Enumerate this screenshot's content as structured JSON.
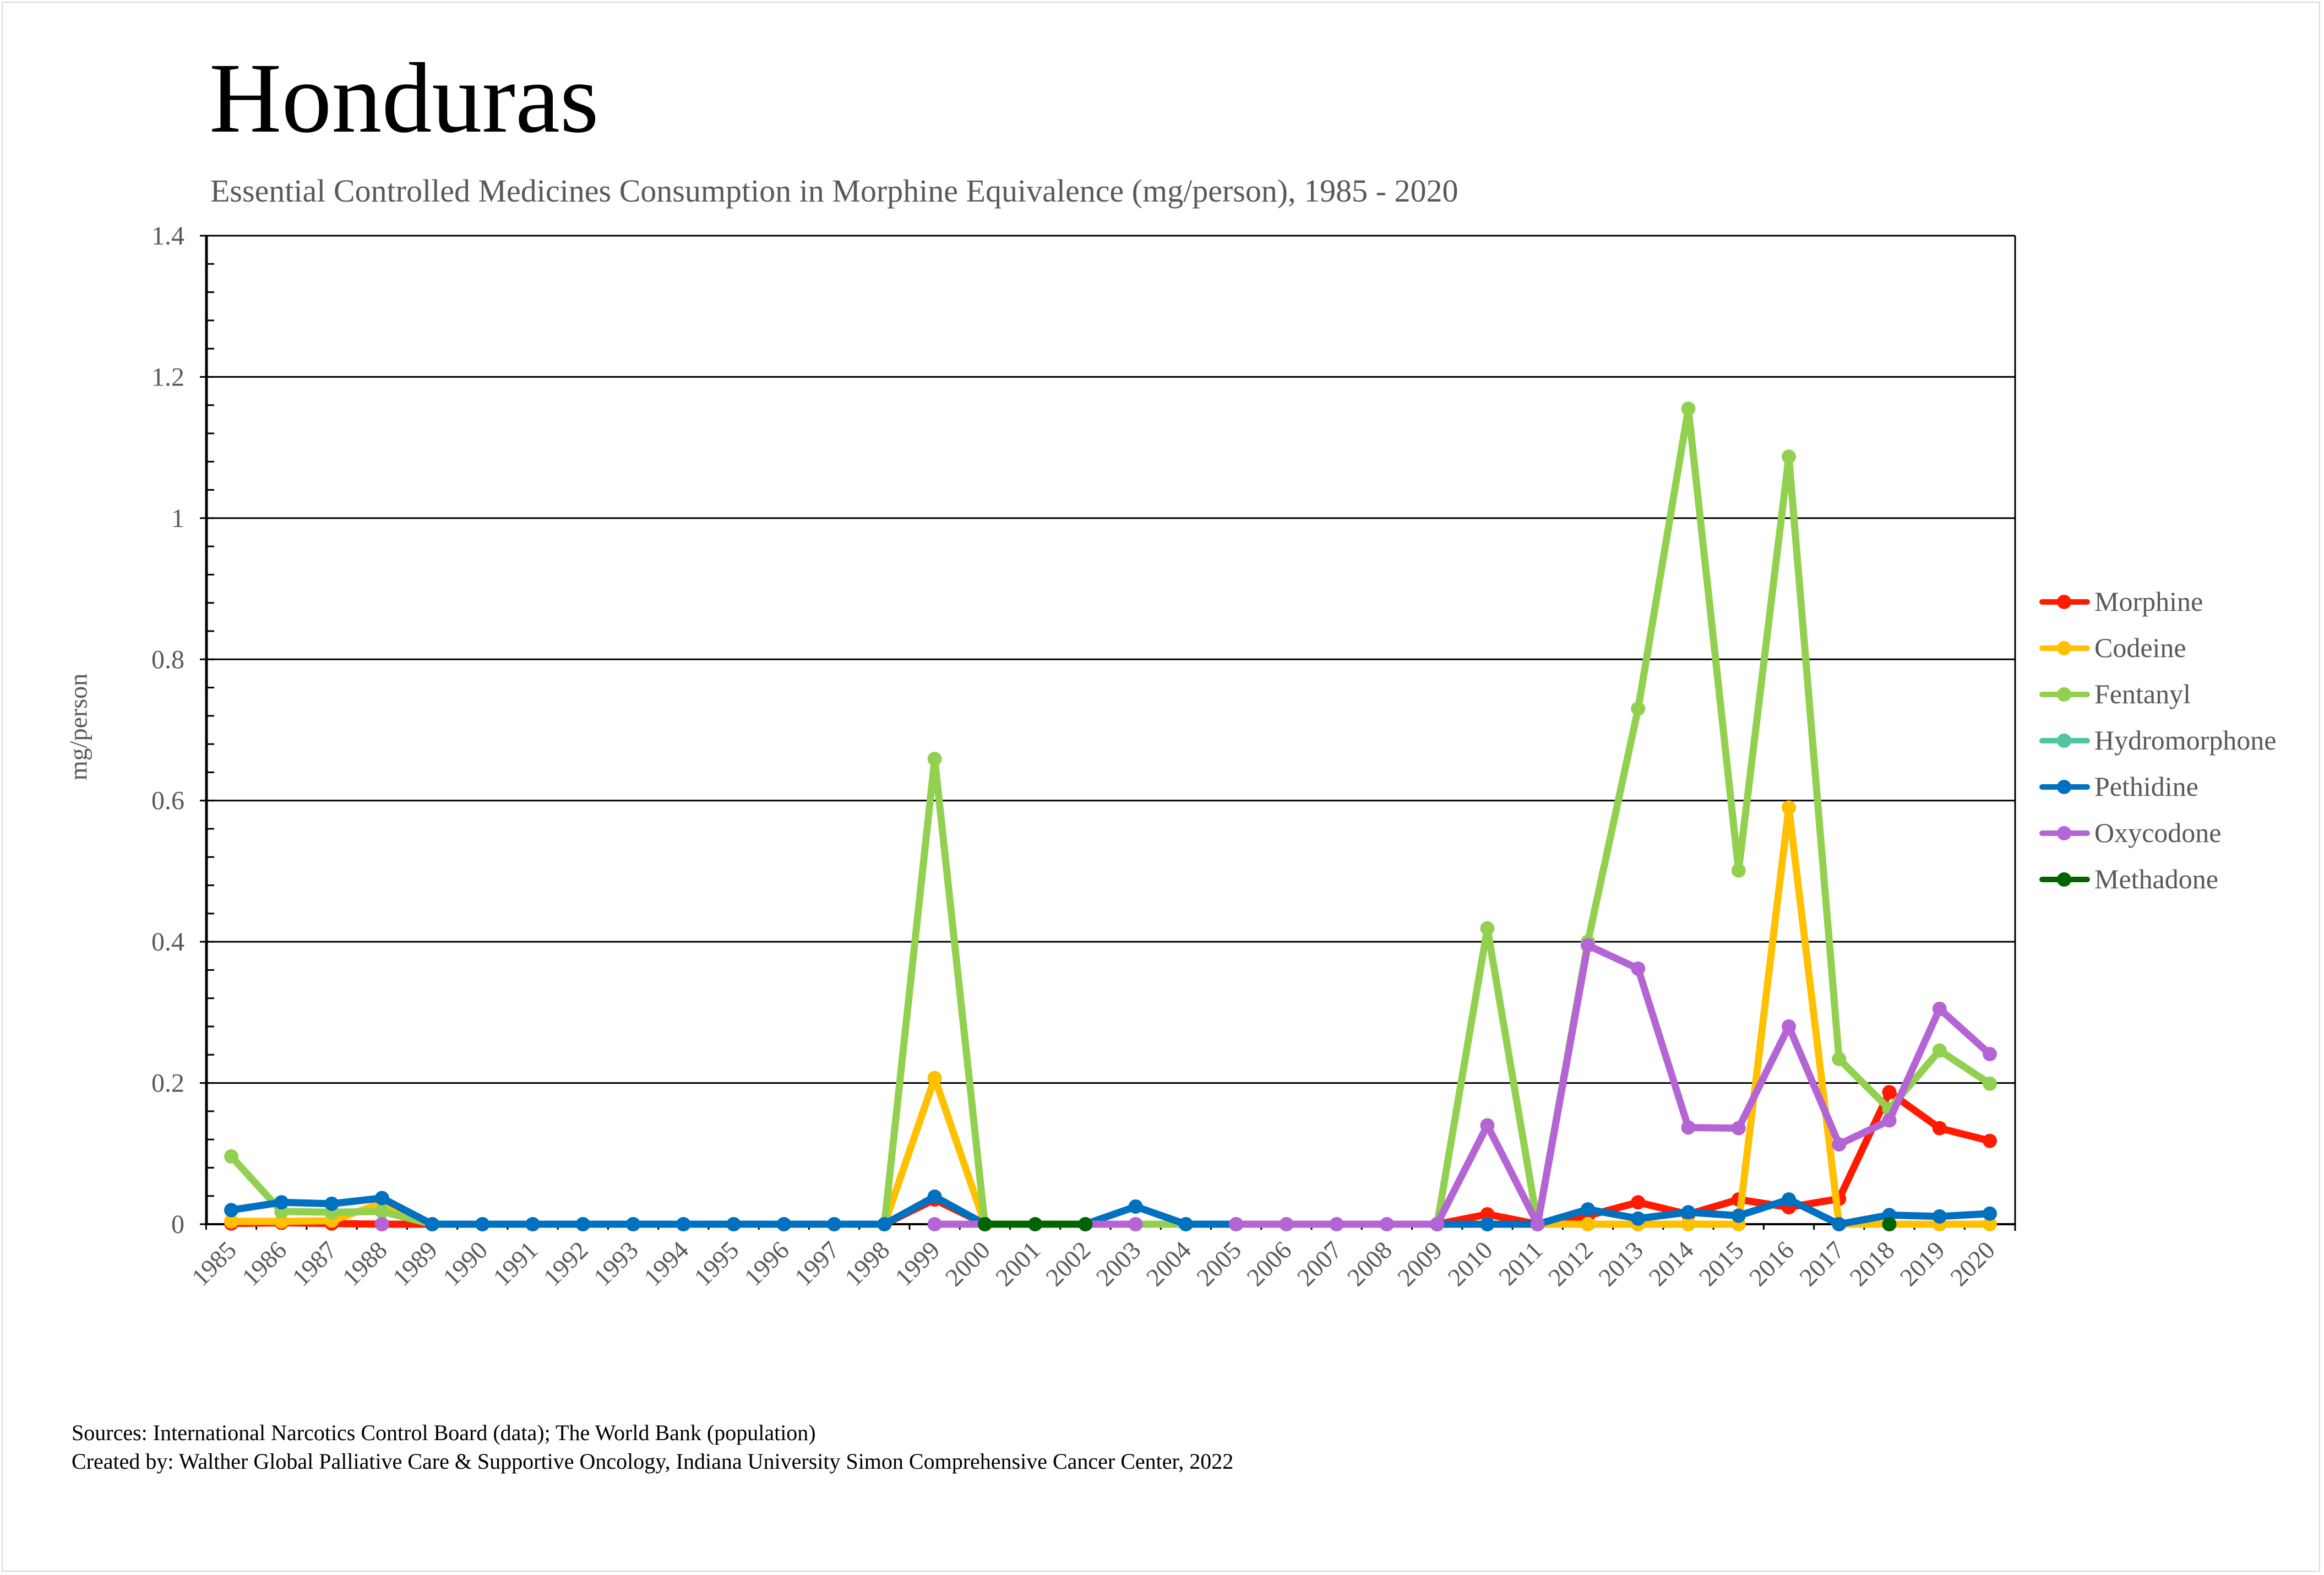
{
  "chart_data": {
    "type": "line",
    "title": "Honduras",
    "subtitle": "Essential Controlled Medicines Consumption in Morphine Equivalence (mg/person), 1985 - 2020",
    "xlabel": "",
    "ylabel": "mg/person",
    "ylim": [
      0,
      1.4
    ],
    "yticks": [
      "0",
      "0.2",
      "0.4",
      "0.6",
      "0.8",
      "1",
      "1.2",
      "1.4"
    ],
    "ytick_values": [
      0,
      0.2,
      0.4,
      0.6,
      0.8,
      1.0,
      1.2,
      1.4
    ],
    "grid": true,
    "legend_position": "right",
    "x": [
      "1985",
      "1986",
      "1987",
      "1988",
      "1989",
      "1990",
      "1991",
      "1992",
      "1993",
      "1994",
      "1995",
      "1996",
      "1997",
      "1998",
      "1999",
      "2000",
      "2001",
      "2002",
      "2003",
      "2004",
      "2005",
      "2006",
      "2007",
      "2008",
      "2009",
      "2010",
      "2011",
      "2012",
      "2013",
      "2014",
      "2015",
      "2016",
      "2017",
      "2018",
      "2019",
      "2020"
    ],
    "series": [
      {
        "name": "Morphine",
        "color": "#ff1a00",
        "values": [
          0.001,
          0.002,
          0.001,
          0,
          0,
          0,
          0,
          0,
          0,
          0,
          0,
          0,
          0,
          0,
          0.035,
          0,
          null,
          null,
          null,
          null,
          null,
          null,
          null,
          null,
          0,
          0.014,
          0,
          0.012,
          0.031,
          0.014,
          0.035,
          0.024,
          0.036,
          0.187,
          0.136,
          0.118
        ]
      },
      {
        "name": "Codeine",
        "color": "#ffc000",
        "values": [
          0.004,
          0.004,
          0.005,
          0.03,
          0,
          0,
          0,
          0,
          0,
          0,
          0,
          0,
          0,
          0,
          0.207,
          0,
          null,
          null,
          null,
          null,
          null,
          null,
          null,
          null,
          null,
          0,
          0,
          0,
          0,
          0,
          0,
          0.59,
          0,
          0,
          0,
          0
        ]
      },
      {
        "name": "Fentanyl",
        "color": "#92d050",
        "values": [
          0.096,
          0.018,
          0.017,
          0.018,
          0,
          0,
          0,
          0,
          0,
          0,
          0,
          0,
          0,
          0,
          0.659,
          0,
          null,
          null,
          0,
          0,
          0,
          0,
          0,
          0,
          0,
          0.419,
          0,
          0.4,
          0.73,
          1.155,
          0.501,
          1.087,
          0.234,
          0.163,
          0.246,
          0.199
        ]
      },
      {
        "name": "Hydromorphone",
        "color": "#4fc6a0",
        "values": [
          null,
          null,
          null,
          null,
          null,
          null,
          null,
          null,
          null,
          null,
          null,
          null,
          null,
          null,
          null,
          null,
          null,
          null,
          null,
          null,
          null,
          null,
          null,
          null,
          null,
          null,
          null,
          null,
          null,
          null,
          null,
          null,
          null,
          null,
          null,
          null
        ]
      },
      {
        "name": "Pethidine",
        "color": "#0070c0",
        "values": [
          0.02,
          0.031,
          0.029,
          0.037,
          0,
          0,
          0,
          0,
          0,
          0,
          0,
          0,
          0,
          0,
          0.039,
          0,
          null,
          0,
          0.025,
          0,
          0,
          null,
          null,
          null,
          0,
          0,
          0,
          0.021,
          0.008,
          0.017,
          0.012,
          0.035,
          0,
          0.013,
          0.011,
          0.015
        ]
      },
      {
        "name": "Oxycodone",
        "color": "#b464d4",
        "values": [
          null,
          null,
          null,
          0,
          null,
          null,
          null,
          null,
          null,
          null,
          null,
          null,
          null,
          null,
          0,
          0,
          null,
          0,
          0,
          null,
          0,
          0,
          0,
          0,
          0,
          0.14,
          0,
          0.395,
          0.362,
          0.137,
          0.136,
          0.28,
          0.113,
          0.147,
          0.305,
          0.241
        ]
      },
      {
        "name": "Methadone",
        "color": "#006400",
        "values": [
          null,
          null,
          null,
          null,
          null,
          null,
          null,
          null,
          null,
          null,
          null,
          null,
          null,
          null,
          null,
          0,
          0,
          0,
          null,
          null,
          null,
          null,
          null,
          null,
          null,
          null,
          null,
          null,
          null,
          null,
          null,
          null,
          null,
          0,
          null,
          null
        ]
      }
    ]
  },
  "footer": {
    "sources": "Sources: International Narcotics Control Board (data); The World Bank (population)",
    "created_by": "Created by: Walther Global Palliative Care & Supportive Oncology, Indiana University Simon Comprehensive Cancer Center, 2022"
  }
}
